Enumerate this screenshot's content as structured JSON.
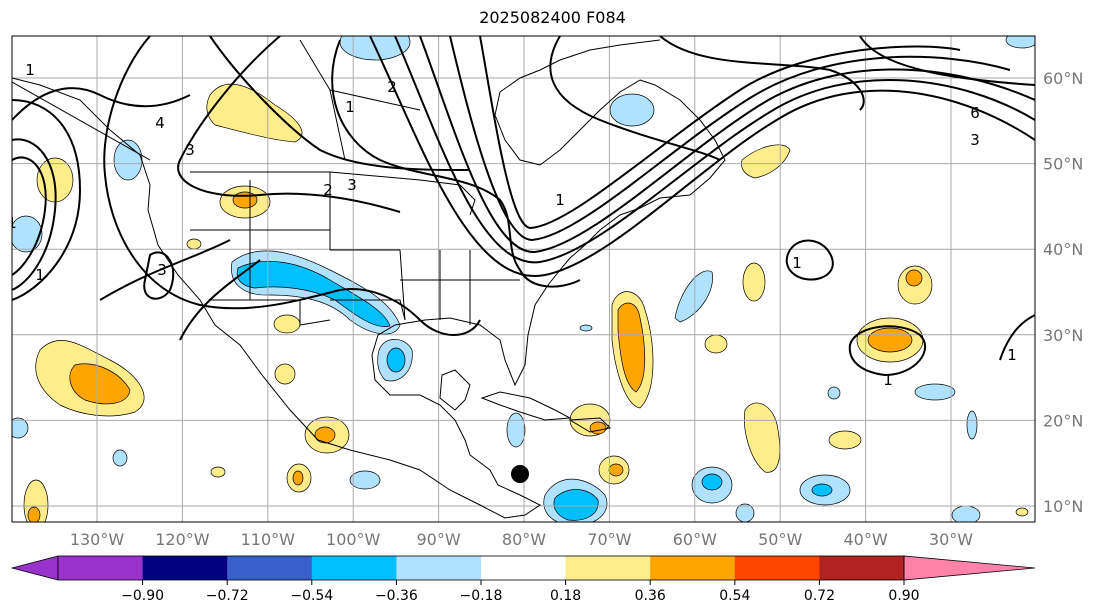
{
  "title": "2025082400 F084",
  "lon_labels": [
    "130°W",
    "120°W",
    "110°W",
    "100°W",
    "90°W",
    "80°W",
    "70°W",
    "60°W",
    "50°W",
    "40°W",
    "30°W"
  ],
  "lat_labels": [
    "60°N",
    "50°N",
    "40°N",
    "30°N",
    "20°N",
    "10°N"
  ],
  "colorbar": {
    "ticks": [
      "−0.90",
      "−0.72",
      "−0.54",
      "−0.36",
      "−0.18",
      "0.18",
      "0.36",
      "0.54",
      "0.72",
      "0.90"
    ],
    "colors": [
      "#9932CC",
      "#000080",
      "#3A5FCD",
      "#00BFFF",
      "#B0E2FF",
      "#FFFFFF",
      "#FFEC8B",
      "#FFA500",
      "#FF4500",
      "#B22222",
      "#FF82AB"
    ]
  },
  "contour_labels": [
    "1",
    "1",
    "2",
    "3",
    "4",
    "3",
    "2",
    "3",
    "1",
    "6",
    "3",
    "1",
    "1",
    "1",
    "1",
    "1"
  ],
  "marker": {
    "lon": "80°W",
    "lat": "13.5°N"
  }
}
